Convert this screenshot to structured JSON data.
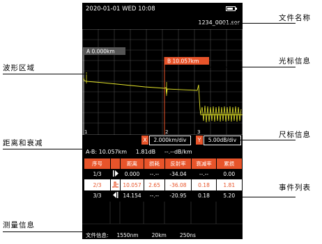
{
  "status": {
    "datetime": "2020-01-01  WED  10:08"
  },
  "file_name": "1234_0001.sor",
  "cursor_a": "A  0.000km",
  "cursor_b": "B  10.057km",
  "markers": [
    "1",
    "2",
    "3"
  ],
  "scale": {
    "x_label": "X",
    "x_value": "2.000km/div",
    "y_label": "Y",
    "y_value": "5.00dB/div"
  },
  "measurement": "A-B: 10.057km     1.81dB     --.--dB/km",
  "table": {
    "headers": [
      "序号",
      "",
      "距离",
      "损耗",
      "反射率",
      "衰减率",
      "累损"
    ],
    "rows": [
      {
        "id": "1/3",
        "icon": "start-event-icon",
        "distance": "0.000",
        "loss": "--.--",
        "reflectance": "-34.04",
        "atten": "--.--",
        "cumul": "0.00"
      },
      {
        "id": "2/3",
        "icon": "reflective-event-icon",
        "distance": "10.057",
        "loss": "2.65",
        "reflectance": "-36.08",
        "atten": "0.18",
        "cumul": "1.81"
      },
      {
        "id": "3/3",
        "icon": "end-event-icon",
        "distance": "14.154",
        "loss": "--.--",
        "reflectance": "-20.95",
        "atten": "0.18",
        "cumul": "5.20"
      }
    ]
  },
  "bottom_info": "文件信息:     1550nm        20km        250ns",
  "callouts": {
    "file_name": "文件名称",
    "cursor_info": "光标信息",
    "waveform": "波形区域",
    "scale_info": "尺标信息",
    "distance_atten": "距离和衰减",
    "event_list": "事件列表",
    "measurement_info": "测量信息"
  },
  "colors": {
    "accent": "#e8542a",
    "trace": "#e6e62a",
    "grid": "#555555"
  }
}
